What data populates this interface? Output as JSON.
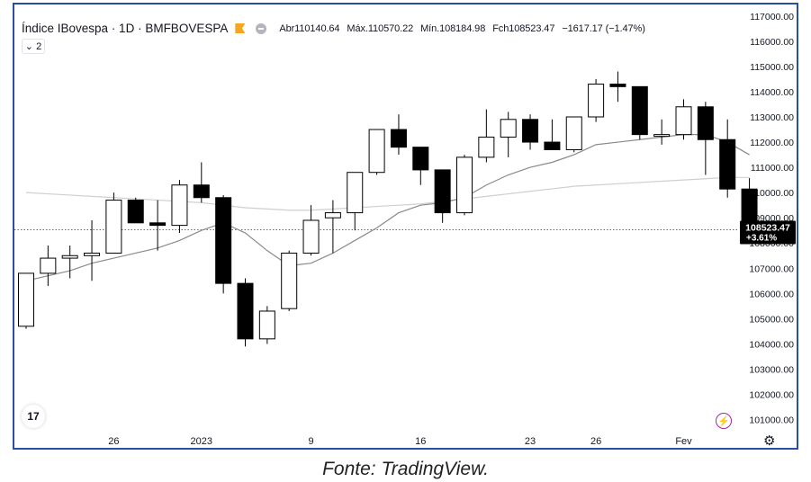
{
  "header": {
    "symbol": "Índice IBovespa · 1D · BMFBOVESPA",
    "open_label": "Abr",
    "open_value": "110140.64",
    "high_label": "Máx.",
    "high_value": "110570.22",
    "low_label": "Mín.",
    "low_value": "108184.98",
    "close_label": "Fch",
    "close_value": "108523.47",
    "change": "−1617.17 (−1.47%)"
  },
  "collapse_label": "⌄ 2",
  "logo_text": "17",
  "caption": "Fonte: TradingView.",
  "price_label": {
    "value": "108523.47",
    "change": "+3.61%"
  },
  "colors": {
    "frame": "#2a4ea6",
    "down_candle": "#000000",
    "up_candle": "#ffffff",
    "ma_short": "#8a8a8a",
    "ma_long": "#cfcfcf",
    "price_tag": "#000000",
    "alert_icon": "#9c27b0"
  },
  "icons": [
    "flag-icon",
    "minus-circle-icon",
    "tradingview-logo-icon",
    "lightning-alert-icon",
    "gear-icon"
  ],
  "chart_data": {
    "type": "candlestick",
    "y_range": [
      100700,
      117100
    ],
    "y_ticks": [
      "101000.00",
      "102000.00",
      "103000.00",
      "104000.00",
      "105000.00",
      "106000.00",
      "107000.00",
      "108000.00",
      "109000.00",
      "110000.00",
      "111000.00",
      "112000.00",
      "113000.00",
      "114000.00",
      "115000.00",
      "116000.00",
      "117000.00"
    ],
    "x_labels": [
      {
        "text": "26",
        "index": 4
      },
      {
        "text": "2023",
        "index": 8
      },
      {
        "text": "9",
        "index": 13
      },
      {
        "text": "16",
        "index": 18
      },
      {
        "text": "23",
        "index": 23
      },
      {
        "text": "26",
        "index": 26
      },
      {
        "text": "Fev",
        "index": 30
      }
    ],
    "candles": [
      {
        "o": 104700,
        "h": 106800,
        "l": 104600,
        "c": 106800
      },
      {
        "o": 106800,
        "h": 107900,
        "l": 106300,
        "c": 107400
      },
      {
        "o": 107400,
        "h": 107900,
        "l": 106600,
        "c": 107500
      },
      {
        "o": 107500,
        "h": 108900,
        "l": 106500,
        "c": 107600
      },
      {
        "o": 107600,
        "h": 110000,
        "l": 107600,
        "c": 109700
      },
      {
        "o": 109700,
        "h": 109800,
        "l": 108800,
        "c": 108800
      },
      {
        "o": 108800,
        "h": 109700,
        "l": 107700,
        "c": 108700
      },
      {
        "o": 108700,
        "h": 110500,
        "l": 108400,
        "c": 110300
      },
      {
        "o": 110300,
        "h": 111200,
        "l": 109600,
        "c": 109800
      },
      {
        "o": 109800,
        "h": 109900,
        "l": 106000,
        "c": 106400
      },
      {
        "o": 106400,
        "h": 106600,
        "l": 103900,
        "c": 104200
      },
      {
        "o": 104200,
        "h": 105500,
        "l": 104000,
        "c": 105300
      },
      {
        "o": 105400,
        "h": 107700,
        "l": 105300,
        "c": 107600
      },
      {
        "o": 107600,
        "h": 109500,
        "l": 107500,
        "c": 108900
      },
      {
        "o": 109000,
        "h": 109700,
        "l": 107600,
        "c": 109200
      },
      {
        "o": 109200,
        "h": 110800,
        "l": 108500,
        "c": 110800
      },
      {
        "o": 110800,
        "h": 112500,
        "l": 110700,
        "c": 112500
      },
      {
        "o": 112500,
        "h": 113100,
        "l": 111500,
        "c": 111800
      },
      {
        "o": 111800,
        "h": 111800,
        "l": 110300,
        "c": 110900
      },
      {
        "o": 110900,
        "h": 110900,
        "l": 108800,
        "c": 109200
      },
      {
        "o": 109200,
        "h": 111500,
        "l": 109100,
        "c": 111400
      },
      {
        "o": 111400,
        "h": 113300,
        "l": 111200,
        "c": 112200
      },
      {
        "o": 112200,
        "h": 113200,
        "l": 111400,
        "c": 112900
      },
      {
        "o": 112900,
        "h": 113100,
        "l": 111700,
        "c": 112000
      },
      {
        "o": 112000,
        "h": 112900,
        "l": 111700,
        "c": 111700
      },
      {
        "o": 111700,
        "h": 113000,
        "l": 111600,
        "c": 113000
      },
      {
        "o": 113000,
        "h": 114500,
        "l": 112800,
        "c": 114300
      },
      {
        "o": 114300,
        "h": 114800,
        "l": 113600,
        "c": 114200
      },
      {
        "o": 114200,
        "h": 114200,
        "l": 112100,
        "c": 112300
      },
      {
        "o": 112300,
        "h": 112900,
        "l": 111900,
        "c": 112300
      },
      {
        "o": 112300,
        "h": 113700,
        "l": 112100,
        "c": 113400
      },
      {
        "o": 113400,
        "h": 113600,
        "l": 110700,
        "c": 112100
      },
      {
        "o": 112100,
        "h": 112900,
        "l": 109800,
        "c": 110140.64
      },
      {
        "o": 110140.64,
        "h": 110570.22,
        "l": 108184.98,
        "c": 108523.47
      }
    ],
    "ma_short": [
      106500,
      106700,
      106900,
      107200,
      107400,
      107600,
      107800,
      108100,
      108500,
      108800,
      108400,
      107700,
      107100,
      107200,
      107600,
      108100,
      108600,
      109200,
      109500,
      109600,
      109800,
      110300,
      110700,
      111000,
      111200,
      111500,
      111900,
      112000,
      112100,
      112200,
      112300,
      112300,
      112000,
      111500
    ],
    "ma_long": [
      110000,
      109950,
      109900,
      109850,
      109800,
      109750,
      109700,
      109650,
      109600,
      109500,
      109400,
      109350,
      109300,
      109300,
      109350,
      109400,
      109450,
      109500,
      109550,
      109650,
      109750,
      109850,
      109950,
      110050,
      110150,
      110250,
      110300,
      110350,
      110400,
      110450,
      110500,
      110550,
      110600,
      110600
    ],
    "last_price_line": 108523.47
  }
}
